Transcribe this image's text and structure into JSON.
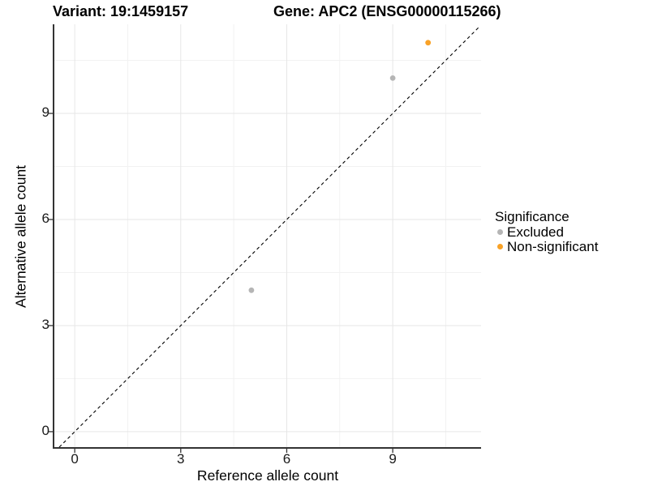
{
  "titles": {
    "variant": "Variant: 19:1459157",
    "gene": "Gene: APC2 (ENSG00000115266)"
  },
  "chart_data": {
    "type": "scatter",
    "title": "Variant: 19:1459157   Gene: APC2 (ENSG00000115266)",
    "xlabel": "Reference allele count",
    "ylabel": "Alternative allele count",
    "x_domain": [
      -0.6,
      11.5
    ],
    "y_domain": [
      -0.46,
      11.52
    ],
    "x_ticks": [
      0,
      3,
      6,
      9
    ],
    "y_ticks": [
      0,
      3,
      6,
      9
    ],
    "x_minor_ticks": [
      1.5,
      4.5,
      7.5,
      10.5
    ],
    "y_minor_ticks": [
      1.5,
      4.5,
      7.5,
      10.5
    ],
    "grid": "major-and-minor",
    "identity_line": {
      "style": "dashed",
      "slope": 1,
      "intercept": 0,
      "from": -0.44,
      "to": 11.45,
      "color": "#000000"
    },
    "series": [
      {
        "name": "Excluded",
        "color": "#b5b5b5",
        "points": [
          {
            "x": 5,
            "y": 4
          },
          {
            "x": 9,
            "y": 10
          }
        ]
      },
      {
        "name": "Non-significant",
        "color": "#f9a227",
        "points": [
          {
            "x": 10,
            "y": 11
          }
        ]
      }
    ],
    "legend": {
      "title": "Significance",
      "position": "right",
      "entries": [
        {
          "label": "Excluded",
          "color": "#b5b5b5"
        },
        {
          "label": "Non-significant",
          "color": "#f9a227"
        }
      ]
    }
  },
  "colors": {
    "background": "#ffffff",
    "axis_line": "#333333",
    "tick_mark": "#333333",
    "tick_label": "#1a1a1a",
    "major_grid": "#e6e6e6",
    "minor_grid": "#f2f2f2"
  }
}
